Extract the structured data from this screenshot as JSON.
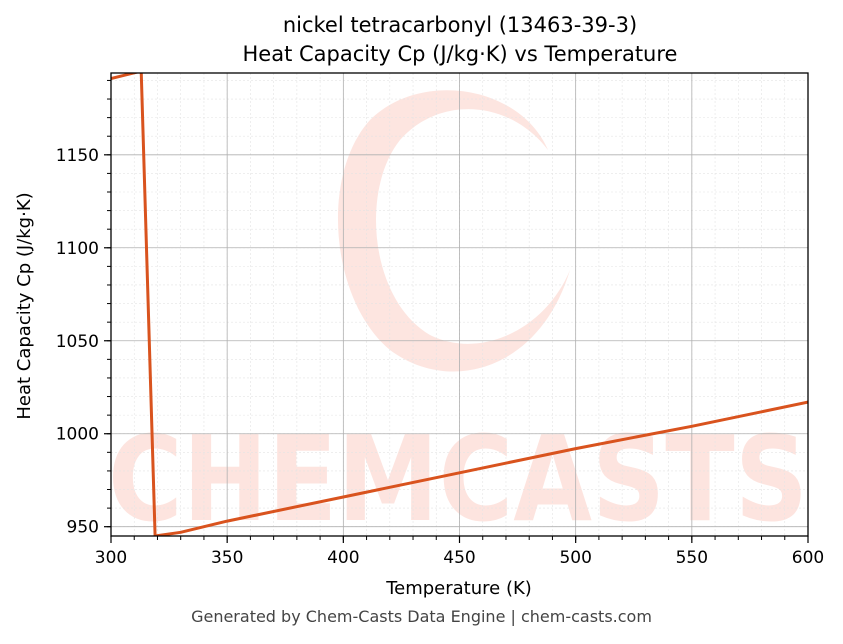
{
  "chart_data": {
    "type": "line",
    "title": "nickel tetracarbonyl (13463-39-3)",
    "subtitle": "Heat Capacity Cp (J/kg·K) vs Temperature",
    "xlabel": "Temperature (K)",
    "ylabel": "Heat Capacity Cp (J/kg·K)",
    "xlim": [
      300,
      600
    ],
    "ylim": [
      945,
      1194
    ],
    "xticks": [
      300,
      350,
      400,
      450,
      500,
      550,
      600
    ],
    "yticks": [
      950,
      1000,
      1050,
      1100,
      1150
    ],
    "grid": true,
    "line_color": "#d9531e",
    "series": [
      {
        "x": [
          300,
          313,
          319,
          330,
          350,
          400,
          450,
          500,
          550,
          600
        ],
        "values": [
          1191,
          1195,
          945,
          947,
          953,
          966,
          979,
          992,
          1004,
          1017
        ]
      }
    ],
    "watermark": "CHEMCASTS"
  },
  "footer": "Generated by Chem-Casts Data Engine | chem-casts.com"
}
